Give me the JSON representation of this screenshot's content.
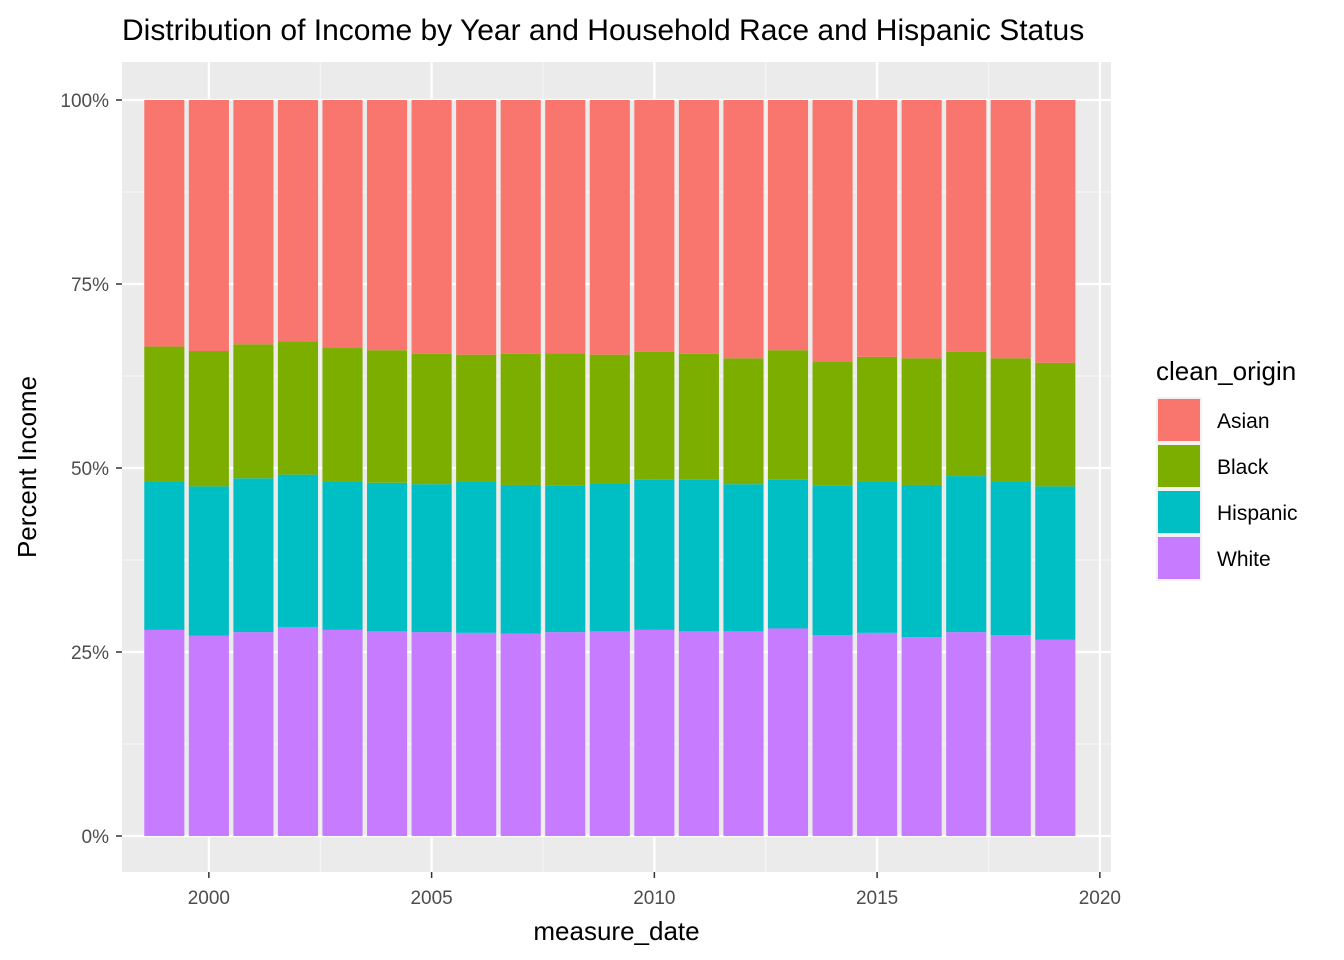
{
  "chart_data": {
    "type": "bar",
    "stacked": true,
    "position": "fill",
    "title": "Distribution of Income by Year and Household Race and Hispanic Status",
    "xlabel": "measure_date",
    "ylabel": "Percent Income",
    "x": [
      1999,
      2000,
      2001,
      2002,
      2003,
      2004,
      2005,
      2006,
      2007,
      2008,
      2009,
      2010,
      2011,
      2012,
      2013,
      2014,
      2015,
      2016,
      2017,
      2018,
      2019
    ],
    "xlim": [
      1998.05,
      2020.25
    ],
    "x_ticks": [
      2000,
      2005,
      2010,
      2015,
      2020
    ],
    "x_tick_labels": [
      "2000",
      "2005",
      "2010",
      "2015",
      "2020"
    ],
    "y_ticks": [
      0,
      0.25,
      0.5,
      0.75,
      1.0
    ],
    "y_tick_labels": [
      "0%",
      "25%",
      "50%",
      "75%",
      "100%"
    ],
    "ylim": [
      0,
      1
    ],
    "grid": true,
    "legend_title": "clean_origin",
    "legend_position": "right",
    "series": [
      {
        "name": "White",
        "color": "#C77CFF",
        "values": [
          0.28,
          0.272,
          0.277,
          0.284,
          0.28,
          0.278,
          0.277,
          0.276,
          0.275,
          0.277,
          0.278,
          0.28,
          0.278,
          0.278,
          0.282,
          0.273,
          0.276,
          0.27,
          0.277,
          0.273,
          0.267
        ]
      },
      {
        "name": "Hispanic",
        "color": "#00BFC4",
        "values": [
          0.201,
          0.203,
          0.209,
          0.207,
          0.201,
          0.202,
          0.201,
          0.205,
          0.202,
          0.199,
          0.201,
          0.204,
          0.206,
          0.2,
          0.202,
          0.203,
          0.205,
          0.207,
          0.212,
          0.208,
          0.208
        ]
      },
      {
        "name": "Black",
        "color": "#7CAE00",
        "values": [
          0.184,
          0.184,
          0.182,
          0.181,
          0.182,
          0.18,
          0.177,
          0.173,
          0.178,
          0.18,
          0.175,
          0.174,
          0.171,
          0.171,
          0.176,
          0.169,
          0.17,
          0.172,
          0.169,
          0.168,
          0.168
        ]
      },
      {
        "name": "Asian",
        "color": "#F8766D",
        "values": [
          0.335,
          0.341,
          0.332,
          0.328,
          0.337,
          0.34,
          0.345,
          0.346,
          0.345,
          0.344,
          0.346,
          0.342,
          0.345,
          0.351,
          0.34,
          0.355,
          0.349,
          0.351,
          0.342,
          0.351,
          0.357
        ]
      }
    ],
    "legend_order": [
      "Asian",
      "Black",
      "Hispanic",
      "White"
    ]
  },
  "style": {
    "panel_bg": "#EBEBEB",
    "grid_major": "#FFFFFF",
    "grid_minor": "#F5F5F5",
    "tick_color": "#333333"
  }
}
